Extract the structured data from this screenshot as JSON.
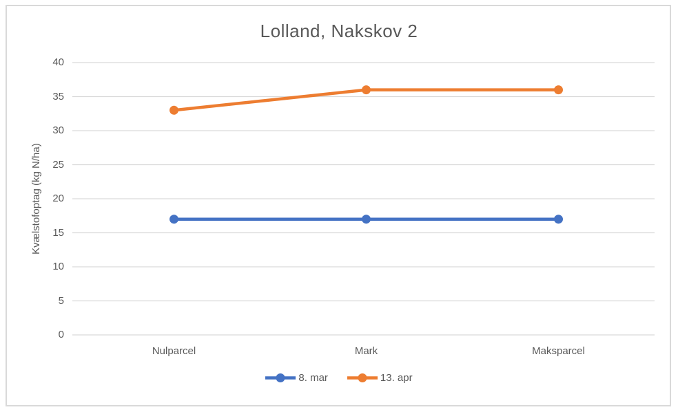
{
  "title": "Lolland, Nakskov 2",
  "colors": {
    "series_blue": "#4472C4",
    "series_orange": "#ED7D31",
    "gridline": "#D9D9D9",
    "border": "#D9D9D9",
    "text": "#595959"
  },
  "chart_data": {
    "type": "line",
    "title": "Lolland, Nakskov 2",
    "ylabel": "Kvælstofoptag (kg N/ha)",
    "xlabel": "",
    "categories": [
      "Nulparcel",
      "Mark",
      "Maksparcel"
    ],
    "series": [
      {
        "name": "8. mar",
        "color": "#4472C4",
        "values": [
          17,
          17,
          17
        ]
      },
      {
        "name": "13. apr",
        "color": "#ED7D31",
        "values": [
          33,
          36,
          36
        ]
      }
    ],
    "ylim": [
      0,
      40
    ],
    "ytick_step": 5,
    "yticks": [
      0,
      5,
      10,
      15,
      20,
      25,
      30,
      35,
      40
    ],
    "grid": true,
    "legend_position": "bottom",
    "marker": "circle"
  }
}
